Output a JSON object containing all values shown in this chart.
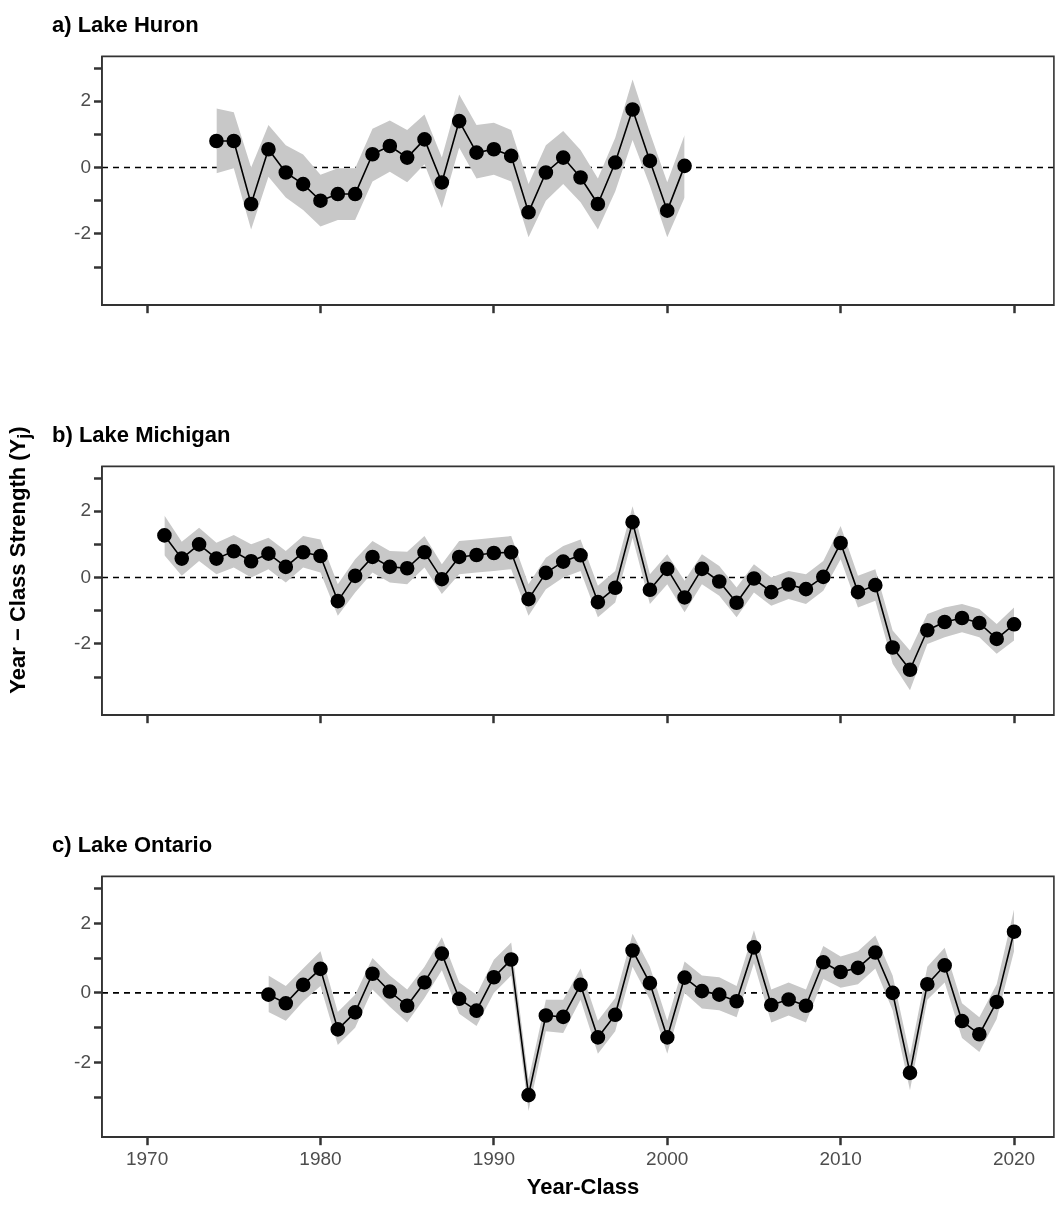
{
  "chart_data": [
    {
      "type": "line",
      "title": "a) Lake Huron",
      "xlim": [
        1967.4,
        2022.3
      ],
      "xticks": [
        1970,
        1980,
        1990,
        2000,
        2010,
        2020
      ],
      "ylim": [
        -4.15,
        3.35
      ],
      "yticks": [
        {
          "value": -3,
          "label": null
        },
        -2,
        {
          "value": -1,
          "label": null
        },
        0,
        {
          "value": 1,
          "label": null
        },
        2,
        {
          "value": 3,
          "label": null
        }
      ],
      "tick_labels": "y",
      "grid": false,
      "legend": false,
      "marker": "circle",
      "line_style": "solid",
      "ref_lines": [
        {
          "axis": "y",
          "value": 0,
          "line_style": "dashed",
          "color": "#000000"
        }
      ],
      "series": [
        {
          "color": "#000000",
          "x": [
            1974,
            1975,
            1976,
            1977,
            1978,
            1979,
            1980,
            1981,
            1982,
            1983,
            1984,
            1985,
            1986,
            1987,
            1988,
            1989,
            1990,
            1991,
            1992,
            1993,
            1994,
            1995,
            1996,
            1997,
            1998,
            1999,
            2000,
            2001
          ],
          "values": [
            0.8,
            0.8,
            -1.1,
            0.55,
            -0.15,
            -0.5,
            -1.0,
            -0.8,
            -0.8,
            0.4,
            0.65,
            0.3,
            0.85,
            -0.45,
            1.4,
            0.45,
            0.55,
            0.35,
            -1.35,
            -0.15,
            0.3,
            -0.3,
            -1.1,
            0.15,
            1.75,
            0.2,
            -1.3,
            0.05
          ],
          "lower": [
            -0.17,
            -0.02,
            -1.87,
            -0.28,
            -0.9,
            -1.28,
            -1.78,
            -1.58,
            -1.58,
            -0.42,
            -0.13,
            -0.44,
            0.1,
            -1.22,
            0.6,
            -0.33,
            -0.22,
            -0.42,
            -2.1,
            -1.0,
            -0.5,
            -1.05,
            -1.87,
            -0.72,
            0.83,
            -0.55,
            -2.1,
            -0.9
          ],
          "upper": [
            1.78,
            1.67,
            0.0,
            1.28,
            0.67,
            0.39,
            -0.22,
            -0.02,
            -0.02,
            1.17,
            1.42,
            1.13,
            1.6,
            0.3,
            2.2,
            1.28,
            1.35,
            1.13,
            -0.5,
            0.67,
            1.1,
            0.53,
            -0.33,
            0.9,
            2.65,
            1.05,
            -0.44,
            0.98
          ]
        }
      ]
    },
    {
      "type": "line",
      "title": "b) Lake Michigan",
      "ylabel": "Year − Class Strength (Y$_{j}$)",
      "xlim": [
        1967.4,
        2022.3
      ],
      "xticks": [
        1970,
        1980,
        1990,
        2000,
        2010,
        2020
      ],
      "ylim": [
        -4.15,
        3.35
      ],
      "yticks": [
        {
          "value": -3,
          "label": null
        },
        -2,
        {
          "value": -1,
          "label": null
        },
        0,
        {
          "value": 1,
          "label": null
        },
        2,
        {
          "value": 3,
          "label": null
        }
      ],
      "tick_labels": "y",
      "grid": false,
      "legend": false,
      "marker": "circle",
      "line_style": "solid",
      "ref_lines": [
        {
          "axis": "y",
          "value": 0,
          "line_style": "dashed",
          "color": "#000000"
        }
      ],
      "series": [
        {
          "color": "#000000",
          "x": [
            1971,
            1972,
            1973,
            1974,
            1975,
            1976,
            1977,
            1978,
            1979,
            1980,
            1981,
            1982,
            1983,
            1984,
            1985,
            1986,
            1987,
            1988,
            1989,
            1990,
            1991,
            1992,
            1993,
            1994,
            1995,
            1996,
            1997,
            1998,
            1999,
            2000,
            2001,
            2002,
            2003,
            2004,
            2005,
            2006,
            2007,
            2008,
            2009,
            2010,
            2011,
            2012,
            2013,
            2014,
            2015,
            2016,
            2017,
            2018,
            2019,
            2020
          ],
          "values": [
            1.27,
            0.57,
            1.0,
            0.57,
            0.79,
            0.49,
            0.72,
            0.32,
            0.76,
            0.65,
            -0.71,
            0.05,
            0.62,
            0.32,
            0.28,
            0.76,
            -0.05,
            0.62,
            0.68,
            0.74,
            0.76,
            -0.65,
            0.14,
            0.48,
            0.67,
            -0.74,
            -0.31,
            1.67,
            -0.37,
            0.26,
            -0.6,
            0.26,
            -0.12,
            -0.76,
            -0.03,
            -0.44,
            -0.21,
            -0.35,
            0.02,
            1.04,
            -0.44,
            -0.23,
            -2.11,
            -2.78,
            -1.59,
            -1.34,
            -1.22,
            -1.37,
            -1.85,
            -1.41
          ],
          "lower": [
            0.67,
            0.05,
            0.5,
            0.1,
            0.3,
            0.0,
            0.25,
            -0.15,
            0.3,
            0.15,
            -1.15,
            -0.45,
            0.15,
            -0.15,
            -0.2,
            0.3,
            -0.5,
            0.1,
            0.15,
            0.2,
            0.25,
            -1.15,
            -0.35,
            0.0,
            0.2,
            -1.2,
            -0.75,
            1.2,
            -0.8,
            -0.2,
            -1.05,
            -0.2,
            -0.55,
            -1.2,
            -0.45,
            -0.85,
            -0.65,
            -0.8,
            -0.4,
            0.55,
            -0.9,
            -0.7,
            -2.6,
            -3.4,
            -2.0,
            -1.8,
            -1.65,
            -1.8,
            -2.3,
            -1.9
          ],
          "upper": [
            1.87,
            1.08,
            1.5,
            1.05,
            1.28,
            1.0,
            1.2,
            0.8,
            1.25,
            1.15,
            -0.2,
            0.55,
            1.1,
            0.8,
            0.78,
            1.25,
            0.4,
            1.1,
            1.15,
            1.2,
            1.25,
            -0.2,
            0.6,
            0.95,
            1.15,
            -0.25,
            0.2,
            2.15,
            0.1,
            0.7,
            -0.1,
            0.7,
            0.35,
            -0.3,
            0.4,
            0.0,
            0.2,
            0.1,
            0.5,
            1.55,
            0.05,
            0.25,
            -1.6,
            -2.2,
            -1.1,
            -0.9,
            -0.8,
            -0.95,
            -1.4,
            -0.9
          ]
        }
      ]
    },
    {
      "type": "line",
      "title": "c) Lake Ontario",
      "xlabel": "Year-Class",
      "xlim": [
        1967.4,
        2022.3
      ],
      "xticks": [
        1970,
        1980,
        1990,
        2000,
        2010,
        2020
      ],
      "ylim": [
        -4.15,
        3.35
      ],
      "yticks": [
        {
          "value": -3,
          "label": null
        },
        -2,
        {
          "value": -1,
          "label": null
        },
        0,
        {
          "value": 1,
          "label": null
        },
        2,
        {
          "value": 3,
          "label": null
        }
      ],
      "grid": false,
      "legend": false,
      "marker": "circle",
      "line_style": "solid",
      "ref_lines": [
        {
          "axis": "y",
          "value": 0,
          "line_style": "dashed",
          "color": "#000000"
        }
      ],
      "series": [
        {
          "color": "#000000",
          "x": [
            1977,
            1978,
            1979,
            1980,
            1981,
            1982,
            1983,
            1984,
            1985,
            1986,
            1987,
            1988,
            1989,
            1990,
            1991,
            1992,
            1993,
            1994,
            1995,
            1996,
            1997,
            1998,
            1999,
            2000,
            2001,
            2002,
            2003,
            2004,
            2005,
            2006,
            2007,
            2008,
            2009,
            2010,
            2011,
            2012,
            2013,
            2014,
            2015,
            2016,
            2017,
            2018,
            2019,
            2020
          ],
          "values": [
            -0.05,
            -0.3,
            0.23,
            0.69,
            -1.05,
            -0.56,
            0.55,
            0.04,
            -0.37,
            0.3,
            1.13,
            -0.17,
            -0.51,
            0.45,
            0.96,
            -2.94,
            -0.65,
            -0.69,
            0.23,
            -1.28,
            -0.63,
            1.22,
            0.28,
            -1.28,
            0.44,
            0.05,
            -0.05,
            -0.24,
            1.31,
            -0.35,
            -0.19,
            -0.37,
            0.88,
            0.6,
            0.72,
            1.16,
            0,
            -2.3,
            0.25,
            0.79,
            -0.81,
            -1.19,
            -0.26,
            1.76
          ],
          "lower": [
            -0.55,
            -0.8,
            -0.25,
            0.2,
            -1.5,
            -1.0,
            0.1,
            -0.4,
            -0.85,
            -0.15,
            0.65,
            -0.6,
            -0.95,
            0.0,
            0.5,
            -3.4,
            -1.1,
            -1.15,
            -0.2,
            -1.75,
            -1.1,
            0.75,
            -0.2,
            -1.75,
            0.0,
            -0.45,
            -0.5,
            -0.7,
            0.85,
            -0.85,
            -0.65,
            -0.85,
            0.4,
            0.15,
            0.25,
            0.7,
            -0.5,
            -2.8,
            -0.2,
            0.3,
            -1.3,
            -1.7,
            -0.75,
            1.2
          ],
          "upper": [
            0.5,
            0.2,
            0.7,
            1.2,
            -0.55,
            -0.05,
            1.0,
            0.5,
            0.1,
            0.75,
            1.6,
            0.3,
            -0.05,
            0.95,
            1.45,
            -2.5,
            -0.2,
            -0.2,
            0.7,
            -0.8,
            -0.15,
            1.7,
            0.75,
            -0.8,
            0.9,
            0.5,
            0.45,
            0.2,
            1.8,
            0.1,
            0.3,
            0.1,
            1.35,
            1.05,
            1.2,
            1.65,
            0.5,
            -1.8,
            0.75,
            1.3,
            -0.3,
            -0.7,
            0.25,
            2.4
          ]
        }
      ]
    }
  ]
}
